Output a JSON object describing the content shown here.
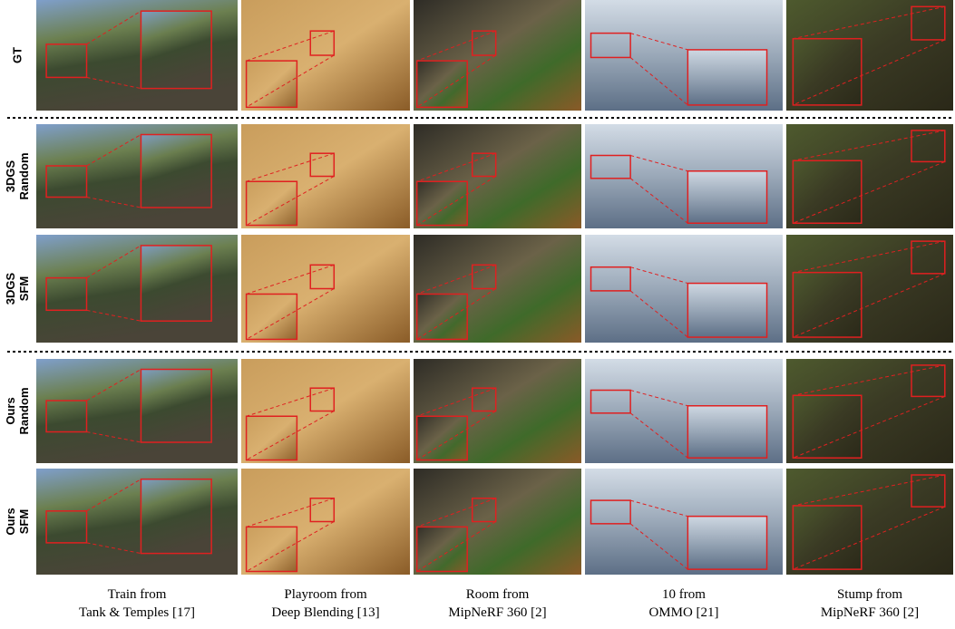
{
  "row_labels": [
    [
      "GT"
    ],
    [
      "3DGS",
      "Random"
    ],
    [
      "3DGS",
      "SFM"
    ],
    [
      "Ours",
      "Random"
    ],
    [
      "Ours",
      "SFM"
    ]
  ],
  "column_captions": [
    [
      "Train from",
      "Tank & Temples [17]"
    ],
    [
      "Playroom from",
      "Deep Blending [13]"
    ],
    [
      "Room from",
      "MipNeRF 360 [2]"
    ],
    [
      "10 from",
      "OMMO [21]"
    ],
    [
      "Stump from",
      "MipNeRF 360 [2]"
    ]
  ]
}
